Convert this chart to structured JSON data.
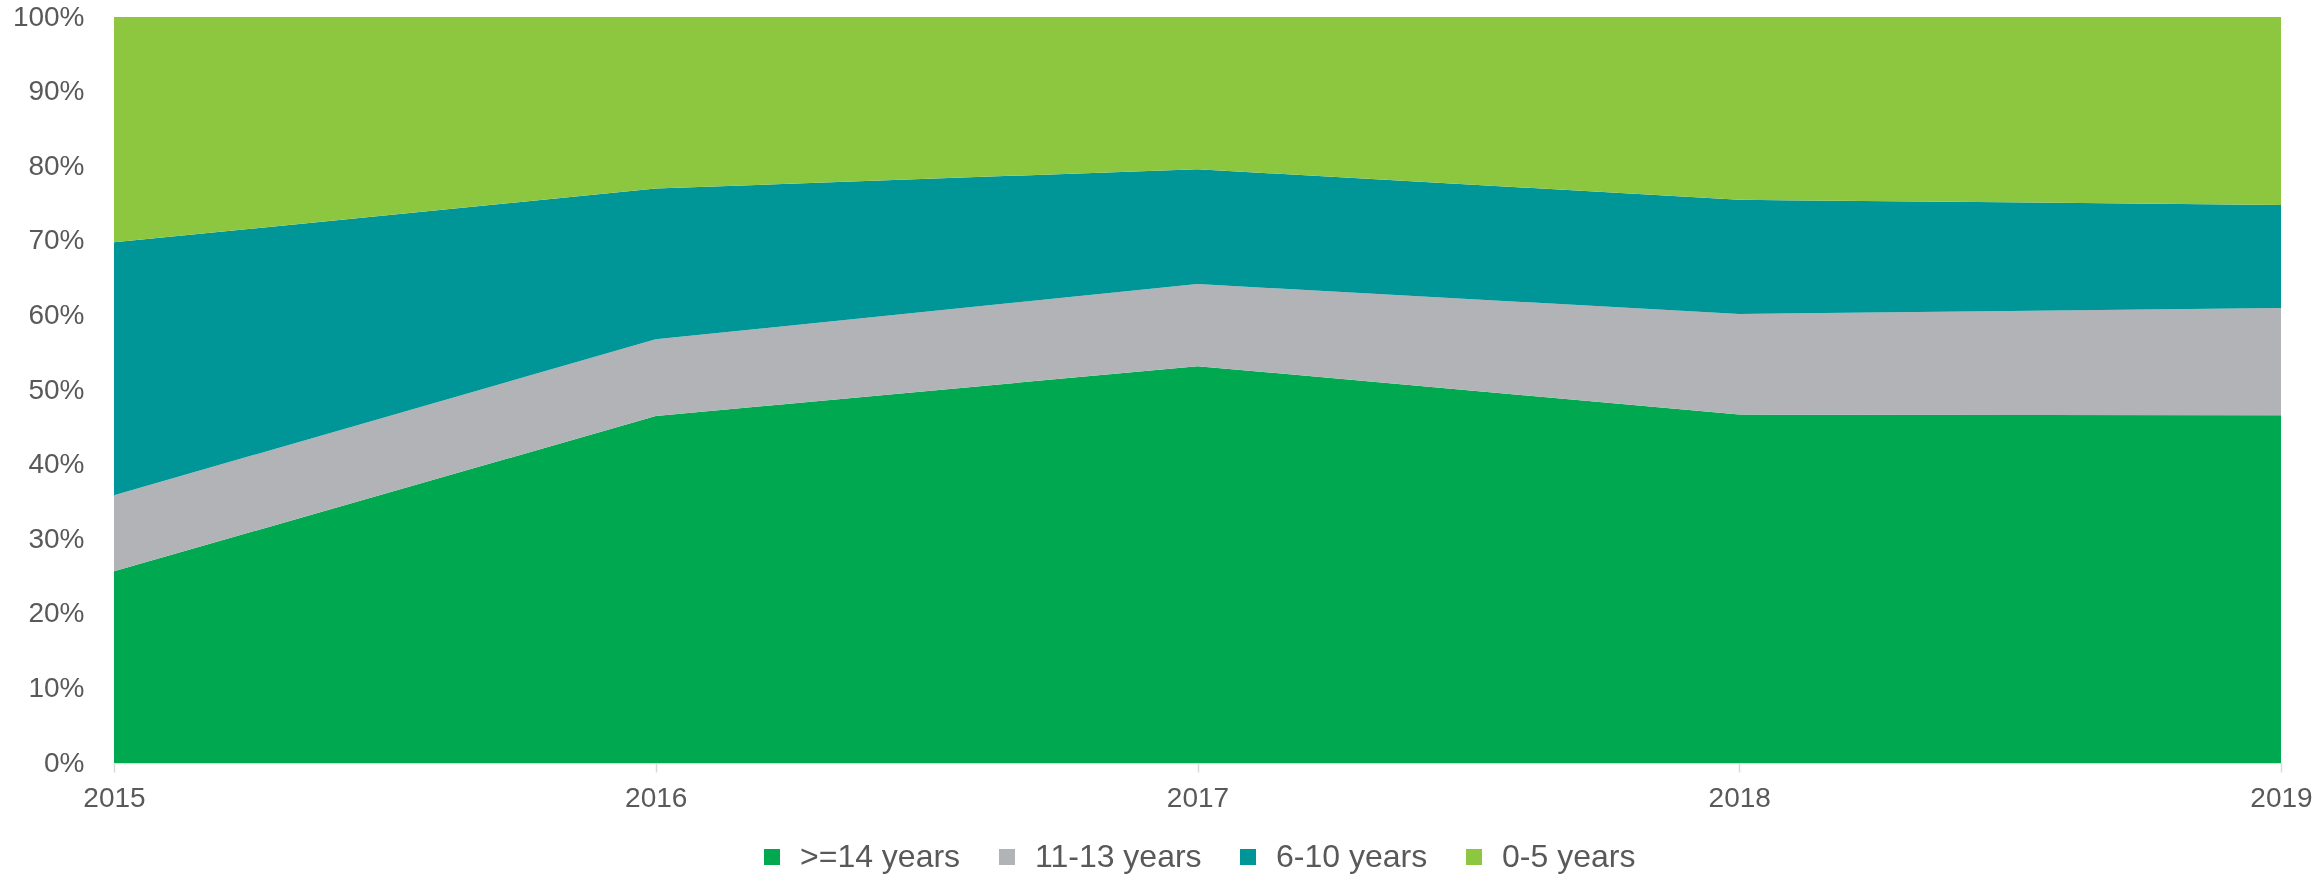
{
  "chart_data": {
    "type": "area",
    "stacked": true,
    "categories": [
      "2015",
      "2016",
      "2017",
      "2018",
      "2019"
    ],
    "series": [
      {
        "name": ">=14 years",
        "color": "#00a94f",
        "values": [
          25.7,
          46.5,
          53.2,
          46.7,
          46.6
        ]
      },
      {
        "name": "11-13 years",
        "color": "#b2b3b6",
        "values": [
          10.2,
          10.3,
          11.0,
          13.5,
          14.4
        ]
      },
      {
        "name": "6-10 years",
        "color": "#009698",
        "values": [
          33.9,
          20.2,
          15.4,
          15.3,
          13.8
        ]
      },
      {
        "name": "0-5 years",
        "color": "#8dc740",
        "values": [
          30.2,
          23.0,
          20.4,
          24.5,
          25.2
        ]
      }
    ],
    "ylim": [
      0,
      100
    ],
    "yticks": [
      {
        "value": 0,
        "label": "0%"
      },
      {
        "value": 10,
        "label": "10%"
      },
      {
        "value": 20,
        "label": "20%"
      },
      {
        "value": 30,
        "label": "30%"
      },
      {
        "value": 40,
        "label": "40%"
      },
      {
        "value": 50,
        "label": "50%"
      },
      {
        "value": 60,
        "label": "60%"
      },
      {
        "value": 70,
        "label": "70%"
      },
      {
        "value": 80,
        "label": "80%"
      },
      {
        "value": 90,
        "label": "90%"
      },
      {
        "value": 100,
        "label": "100%"
      }
    ],
    "legend": "bottom"
  }
}
